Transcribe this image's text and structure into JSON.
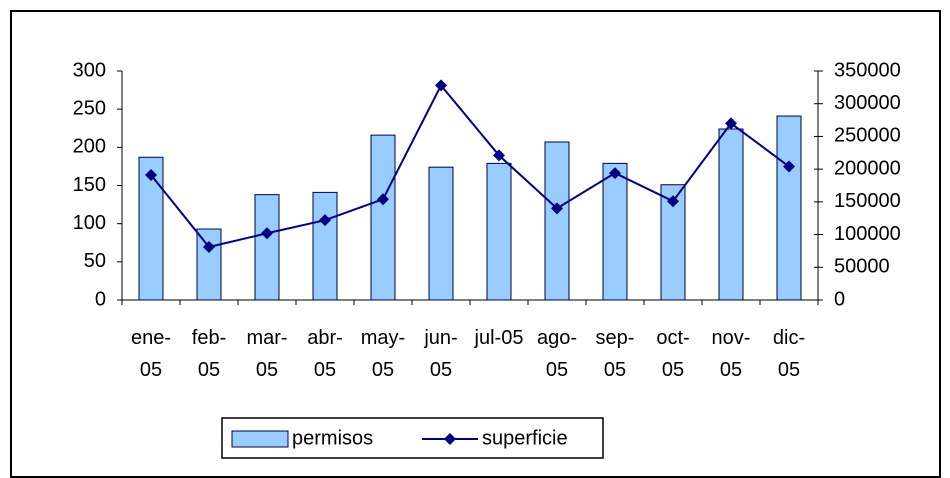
{
  "chart_data": {
    "type": "bar-line",
    "categories": [
      "ene-05",
      "feb-05",
      "mar-05",
      "abr-05",
      "may-05",
      "jun-05",
      "jul-05",
      "ago-05",
      "sep-05",
      "oct-05",
      "nov-05",
      "dic-05"
    ],
    "series": [
      {
        "name": "permisos",
        "type": "bar",
        "color": "#99ccff",
        "values": [
          187,
          93,
          138,
          141,
          216,
          174,
          179,
          207,
          179,
          151,
          224,
          241
        ]
      },
      {
        "name": "superficie",
        "type": "line",
        "axis": "y2",
        "color": "#000080",
        "values": [
          191000,
          81000,
          102000,
          122000,
          154000,
          328000,
          221000,
          140000,
          194000,
          151000,
          270000,
          204000
        ]
      }
    ],
    "ylim": [
      0,
      300
    ],
    "yticks": [
      0,
      50,
      100,
      150,
      200,
      250,
      300
    ],
    "y2lim": [
      0,
      350000
    ],
    "y2ticks": [
      0,
      50000,
      100000,
      150000,
      200000,
      250000,
      300000,
      350000
    ],
    "grid": false,
    "legend": "bottom"
  }
}
